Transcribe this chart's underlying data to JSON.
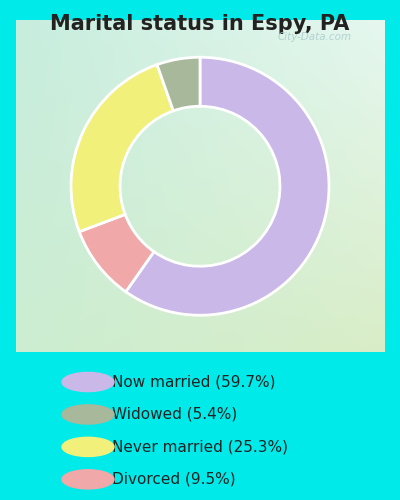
{
  "title": "Marital status in Espy, PA",
  "categories": [
    "Now married",
    "Widowed",
    "Never married",
    "Divorced"
  ],
  "values": [
    59.7,
    5.4,
    25.3,
    9.5
  ],
  "colors": [
    "#c9b8e8",
    "#a8b89a",
    "#f0f07a",
    "#f0a8a8"
  ],
  "legend_labels": [
    "Now married (59.7%)",
    "Widowed (5.4%)",
    "Never married (25.3%)",
    "Divorced (9.5%)"
  ],
  "plot_order": [
    0,
    3,
    2,
    1
  ],
  "cyan_color": "#00eaea",
  "chart_border_color": "#c8e8c8",
  "title_fontsize": 15,
  "title_color": "#222222",
  "legend_fontsize": 11,
  "watermark": "City-Data.com",
  "donut_width": 0.38
}
